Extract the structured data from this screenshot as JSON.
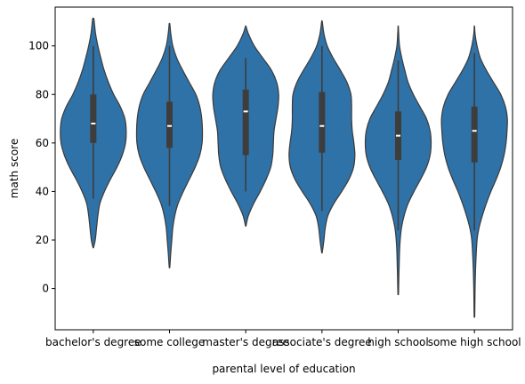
{
  "chart_data": {
    "type": "violin",
    "xlabel": "parental level of education",
    "ylabel": "math score",
    "ylim": [
      -17,
      116
    ],
    "yticks": [
      0,
      20,
      40,
      60,
      80,
      100
    ],
    "grid": false,
    "legend": "none",
    "colors": {
      "violin_fill": "#2f72a8",
      "outline": "#3a3a3a",
      "box": "#3d3d3d",
      "median": "#ffffff"
    },
    "categories": [
      "bachelor's degree",
      "some college",
      "master's degree",
      "associate's degree",
      "high school",
      "some high school"
    ],
    "violins": [
      {
        "category": "bachelor's degree",
        "min": 17,
        "q1": 60,
        "median": 68,
        "q3": 80,
        "max": 111,
        "whisker_low": 37,
        "whisker_high": 100,
        "profile": [
          [
            17,
            0.01
          ],
          [
            20,
            0.06
          ],
          [
            25,
            0.1
          ],
          [
            30,
            0.14
          ],
          [
            35,
            0.2
          ],
          [
            40,
            0.34
          ],
          [
            45,
            0.52
          ],
          [
            50,
            0.72
          ],
          [
            55,
            0.88
          ],
          [
            60,
            0.98
          ],
          [
            65,
            1.0
          ],
          [
            70,
            0.96
          ],
          [
            75,
            0.82
          ],
          [
            80,
            0.62
          ],
          [
            85,
            0.46
          ],
          [
            90,
            0.33
          ],
          [
            95,
            0.23
          ],
          [
            100,
            0.14
          ],
          [
            105,
            0.07
          ],
          [
            111,
            0.02
          ]
        ]
      },
      {
        "category": "some college",
        "min": 9,
        "q1": 58,
        "median": 67,
        "q3": 77,
        "max": 109,
        "whisker_low": 34,
        "whisker_high": 100,
        "profile": [
          [
            9,
            0.01
          ],
          [
            15,
            0.04
          ],
          [
            20,
            0.07
          ],
          [
            25,
            0.1
          ],
          [
            30,
            0.16
          ],
          [
            35,
            0.26
          ],
          [
            40,
            0.42
          ],
          [
            45,
            0.6
          ],
          [
            50,
            0.78
          ],
          [
            55,
            0.92
          ],
          [
            60,
            0.99
          ],
          [
            65,
            1.0
          ],
          [
            70,
            0.98
          ],
          [
            75,
            0.92
          ],
          [
            80,
            0.8
          ],
          [
            85,
            0.6
          ],
          [
            90,
            0.4
          ],
          [
            95,
            0.22
          ],
          [
            100,
            0.1
          ],
          [
            105,
            0.04
          ],
          [
            109,
            0.01
          ]
        ]
      },
      {
        "category": "master's degree",
        "min": 26,
        "q1": 55,
        "median": 73,
        "q3": 82,
        "max": 108,
        "whisker_low": 40,
        "whisker_high": 95,
        "profile": [
          [
            26,
            0.01
          ],
          [
            30,
            0.08
          ],
          [
            35,
            0.24
          ],
          [
            40,
            0.44
          ],
          [
            45,
            0.62
          ],
          [
            50,
            0.76
          ],
          [
            55,
            0.82
          ],
          [
            60,
            0.84
          ],
          [
            65,
            0.86
          ],
          [
            70,
            0.92
          ],
          [
            75,
            0.98
          ],
          [
            80,
            1.0
          ],
          [
            85,
            0.94
          ],
          [
            90,
            0.78
          ],
          [
            95,
            0.52
          ],
          [
            100,
            0.26
          ],
          [
            105,
            0.08
          ],
          [
            108,
            0.01
          ]
        ]
      },
      {
        "category": "associate's degree",
        "min": 15,
        "q1": 56,
        "median": 67,
        "q3": 81,
        "max": 110,
        "whisker_low": 32,
        "whisker_high": 100,
        "profile": [
          [
            15,
            0.01
          ],
          [
            20,
            0.06
          ],
          [
            25,
            0.1
          ],
          [
            30,
            0.18
          ],
          [
            35,
            0.36
          ],
          [
            40,
            0.6
          ],
          [
            45,
            0.82
          ],
          [
            50,
            0.96
          ],
          [
            55,
            1.0
          ],
          [
            60,
            0.97
          ],
          [
            65,
            0.92
          ],
          [
            70,
            0.9
          ],
          [
            75,
            0.9
          ],
          [
            80,
            0.88
          ],
          [
            85,
            0.76
          ],
          [
            90,
            0.56
          ],
          [
            95,
            0.34
          ],
          [
            100,
            0.16
          ],
          [
            105,
            0.06
          ],
          [
            110,
            0.01
          ]
        ]
      },
      {
        "category": "high school",
        "min": -2,
        "q1": 53,
        "median": 63,
        "q3": 73,
        "max": 108,
        "whisker_low": 24,
        "whisker_high": 94,
        "profile": [
          [
            -2,
            0.01
          ],
          [
            5,
            0.02
          ],
          [
            10,
            0.03
          ],
          [
            15,
            0.04
          ],
          [
            20,
            0.06
          ],
          [
            25,
            0.1
          ],
          [
            30,
            0.18
          ],
          [
            35,
            0.3
          ],
          [
            40,
            0.48
          ],
          [
            45,
            0.68
          ],
          [
            50,
            0.86
          ],
          [
            55,
            0.97
          ],
          [
            60,
            1.0
          ],
          [
            65,
            0.97
          ],
          [
            70,
            0.86
          ],
          [
            75,
            0.66
          ],
          [
            80,
            0.46
          ],
          [
            85,
            0.3
          ],
          [
            90,
            0.2
          ],
          [
            95,
            0.11
          ],
          [
            100,
            0.04
          ],
          [
            105,
            0.015
          ],
          [
            108,
            0.005
          ]
        ]
      },
      {
        "category": "some high school",
        "min": -11,
        "q1": 52,
        "median": 65,
        "q3": 75,
        "max": 108,
        "whisker_low": 24,
        "whisker_high": 97,
        "profile": [
          [
            -11,
            0.01
          ],
          [
            0,
            0.02
          ],
          [
            10,
            0.04
          ],
          [
            20,
            0.08
          ],
          [
            25,
            0.14
          ],
          [
            30,
            0.24
          ],
          [
            35,
            0.36
          ],
          [
            40,
            0.5
          ],
          [
            45,
            0.66
          ],
          [
            50,
            0.8
          ],
          [
            55,
            0.9
          ],
          [
            60,
            0.96
          ],
          [
            65,
            0.99
          ],
          [
            70,
            1.0
          ],
          [
            75,
            0.94
          ],
          [
            80,
            0.8
          ],
          [
            85,
            0.58
          ],
          [
            90,
            0.36
          ],
          [
            95,
            0.18
          ],
          [
            100,
            0.08
          ],
          [
            105,
            0.02
          ],
          [
            108,
            0.005
          ]
        ]
      }
    ]
  }
}
